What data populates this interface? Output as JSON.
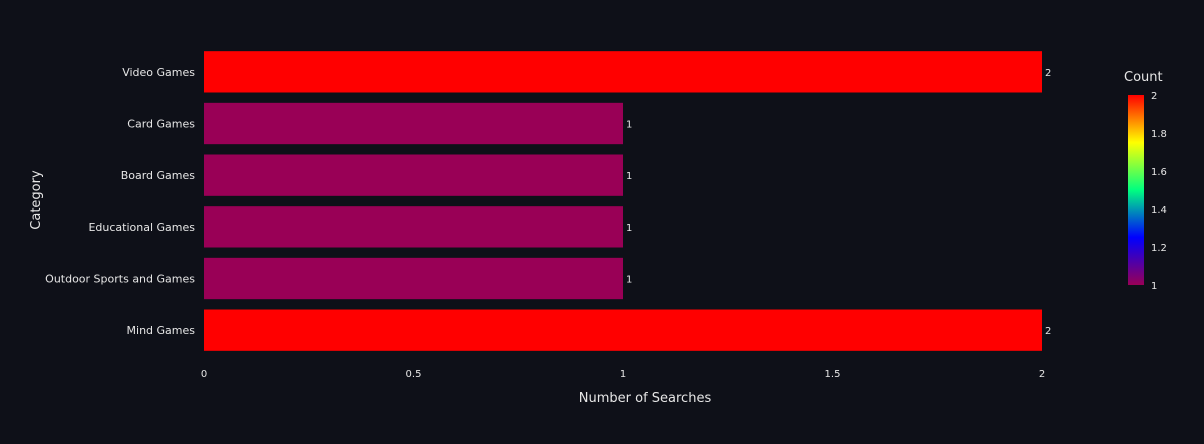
{
  "chart_data": {
    "type": "bar",
    "orientation": "horizontal",
    "categories": [
      "Video Games",
      "Card Games",
      "Board Games",
      "Educational Games",
      "Outdoor Sports and Games",
      "Mind Games"
    ],
    "values": [
      2,
      1,
      1,
      1,
      1,
      2
    ],
    "value_labels": [
      "2",
      "1",
      "1",
      "1",
      "1",
      "2"
    ],
    "xlabel": "Number of Searches",
    "ylabel": "Category",
    "xlim": [
      0,
      2
    ],
    "x_ticks": [
      0,
      0.5,
      1,
      1.5,
      2
    ],
    "x_tick_labels": [
      "0",
      "0.5",
      "1",
      "1.5",
      "2"
    ],
    "grid": false,
    "colorbar": {
      "title": "Count",
      "range": [
        1,
        2
      ],
      "ticks": [
        1,
        1.2,
        1.4,
        1.6,
        1.8,
        2
      ],
      "tick_labels": [
        "1",
        "1.2",
        "1.4",
        "1.6",
        "1.8",
        "2"
      ],
      "colorscale": [
        "#990056",
        "#0000ff",
        "#00ff80",
        "#ffff00",
        "#ff0000"
      ]
    },
    "colors": {
      "background": "#0e1018",
      "text": "#e6e6e6",
      "min_color": "#990056",
      "max_color": "#ff0000"
    }
  }
}
